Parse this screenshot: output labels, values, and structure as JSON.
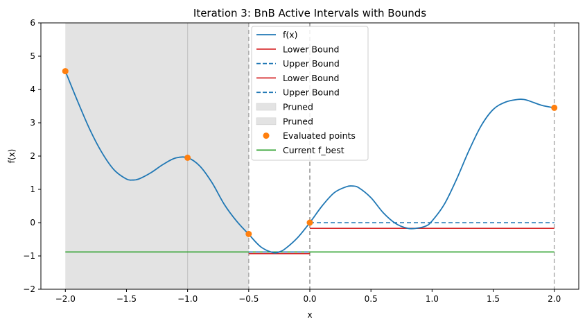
{
  "chart_data": {
    "type": "line",
    "title": "Iteration 3: BnB Active Intervals with Bounds",
    "xlabel": "x",
    "ylabel": "f(x)",
    "xlim": [
      -2.2,
      2.2
    ],
    "ylim": [
      -2,
      6
    ],
    "x_ticks": [
      -2.0,
      -1.5,
      -1.0,
      -0.5,
      0.0,
      0.5,
      1.0,
      1.5,
      2.0
    ],
    "x_tick_labels": [
      "−2.0",
      "−1.5",
      "−1.0",
      "−0.5",
      "0.0",
      "0.5",
      "1.0",
      "1.5",
      "2.0"
    ],
    "y_ticks": [
      -2,
      -1,
      0,
      1,
      2,
      3,
      4,
      5,
      6
    ],
    "y_tick_labels": [
      "−2",
      "−1",
      "0",
      "1",
      "2",
      "3",
      "4",
      "5",
      "6"
    ],
    "grid": false,
    "legend_position": "top-center",
    "colors": {
      "fx": "#1f77b4",
      "lower": "#d62728",
      "upper": "#1f77b4",
      "points": "#ff7f0e",
      "fbest": "#2ca02c",
      "pruned": "#e3e3e3",
      "boundary": "#b0b0b0"
    },
    "curve": {
      "name": "f(x)",
      "x": [
        -2.0,
        -1.9,
        -1.8,
        -1.7,
        -1.6,
        -1.5,
        -1.45,
        -1.4,
        -1.3,
        -1.2,
        -1.1,
        -1.0,
        -0.9,
        -0.8,
        -0.7,
        -0.6,
        -0.5,
        -0.4,
        -0.3,
        -0.25,
        -0.2,
        -0.1,
        0.0,
        0.1,
        0.2,
        0.3,
        0.35,
        0.4,
        0.5,
        0.6,
        0.7,
        0.8,
        0.87,
        0.95,
        1.0,
        1.1,
        1.2,
        1.3,
        1.4,
        1.5,
        1.6,
        1.7,
        1.75,
        1.8,
        1.9,
        2.0
      ],
      "y": [
        4.55,
        3.65,
        2.8,
        2.1,
        1.58,
        1.31,
        1.28,
        1.31,
        1.5,
        1.75,
        1.94,
        1.95,
        1.7,
        1.2,
        0.55,
        0.05,
        -0.35,
        -0.73,
        -0.9,
        -0.88,
        -0.78,
        -0.45,
        0.0,
        0.5,
        0.9,
        1.08,
        1.1,
        1.05,
        0.75,
        0.3,
        -0.02,
        -0.17,
        -0.17,
        -0.1,
        0.05,
        0.55,
        1.3,
        2.15,
        2.9,
        3.4,
        3.62,
        3.7,
        3.7,
        3.65,
        3.52,
        3.45
      ]
    },
    "active_intervals": [
      {
        "x_start": -0.5,
        "x_end": 0.0,
        "lower_bound": -0.93,
        "upper_bound": -0.88
      },
      {
        "x_start": 0.0,
        "x_end": 2.0,
        "lower_bound": -0.17,
        "upper_bound": 0.0
      }
    ],
    "pruned_intervals": [
      [
        -2.0,
        -1.0
      ],
      [
        -1.0,
        -0.5
      ]
    ],
    "interval_boundaries": [
      -0.5,
      0.0,
      2.0
    ],
    "evaluated_points": {
      "x": [
        -2.0,
        -1.0,
        -0.5,
        0.0,
        2.0
      ],
      "y": [
        4.55,
        1.95,
        -0.34,
        0.0,
        3.45
      ]
    },
    "f_best": -0.88,
    "legend": [
      "f(x)",
      "Lower Bound",
      "Upper Bound",
      "Lower Bound",
      "Upper Bound",
      "Pruned",
      "Pruned",
      "Evaluated points",
      "Current f_best"
    ]
  }
}
